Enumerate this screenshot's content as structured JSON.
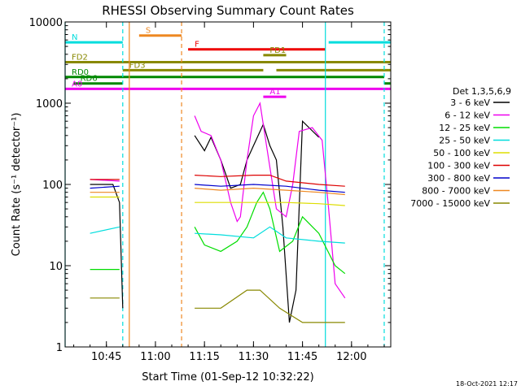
{
  "chart_data": {
    "type": "line",
    "title": "RHESSI Observing Summary Count Rates",
    "xlabel": "Start Time (01-Sep-12 10:32:22)",
    "ylabel": "Count Rate (s⁻¹ detector⁻¹)",
    "y_scale": "log",
    "ylim": [
      1,
      10000
    ],
    "xlim": [
      "10:32:22",
      "12:12:00"
    ],
    "x_ticks": [
      "10:45",
      "11:00",
      "11:15",
      "11:30",
      "11:45",
      "12:00"
    ],
    "y_ticks": [
      "1",
      "10",
      "100",
      "1000",
      "10000"
    ],
    "timestamp": "18-Oct-2021 12:17",
    "legend": {
      "title": "Det 1,3,5,6,9",
      "position": "right",
      "entries": [
        {
          "label": "3 - 6 keV",
          "color": "#000000"
        },
        {
          "label": "6 - 12 keV",
          "color": "#ee00ee"
        },
        {
          "label": "12 - 25 keV",
          "color": "#00dd00"
        },
        {
          "label": "25 - 50 keV",
          "color": "#00dddd"
        },
        {
          "label": "50 - 100 keV",
          "color": "#dddd00"
        },
        {
          "label": "100 - 300 keV",
          "color": "#dd0000"
        },
        {
          "label": "300 - 800 keV",
          "color": "#0000cc"
        },
        {
          "label": "800 - 7000 keV",
          "color": "#ee8822"
        },
        {
          "label": "7000 - 15000 keV",
          "color": "#888800"
        }
      ]
    },
    "flags": [
      {
        "label": "S",
        "color": "#ee8822",
        "level": 6800,
        "segments": [
          [
            "10:55:00",
            "11:08:00"
          ]
        ]
      },
      {
        "label": "N",
        "color": "#00dddd",
        "level": 5600,
        "segments": [
          [
            "10:32:22",
            "10:50:00"
          ],
          [
            "11:53:00",
            "12:12:00"
          ]
        ]
      },
      {
        "label": "F",
        "color": "#ee0000",
        "level": 4600,
        "segments": [
          [
            "11:10:00",
            "11:52:00"
          ]
        ]
      },
      {
        "label": "FD1",
        "color": "#888800",
        "level": 3900,
        "segments": [
          [
            "11:33:00",
            "11:40:00"
          ]
        ]
      },
      {
        "label": "FD2",
        "color": "#888800",
        "level": 3200,
        "segments": [
          [
            "10:32:22",
            "12:12:00"
          ]
        ]
      },
      {
        "label": "FD3",
        "color": "#888800",
        "level": 2550,
        "segments": [
          [
            "10:50:00",
            "11:33:00"
          ],
          [
            "11:37:00",
            "12:12:00"
          ]
        ]
      },
      {
        "label": "RD0",
        "color": "#008800",
        "level": 2100,
        "segments": [
          [
            "10:32:22",
            "12:10:00"
          ]
        ]
      },
      {
        "label": "RD6",
        "color": "#008800",
        "level": 1750,
        "segments": [
          [
            "10:35:00",
            "10:50:00"
          ],
          [
            "12:10:00",
            "12:12:00"
          ]
        ]
      },
      {
        "label": "A0",
        "color": "#ee00ee",
        "level": 1500,
        "segments": [
          [
            "10:32:22",
            "12:12:00"
          ]
        ]
      },
      {
        "label": "A1",
        "color": "#ee00ee",
        "level": 1200,
        "segments": [
          [
            "11:33:00",
            "11:40:00"
          ]
        ]
      }
    ],
    "markers": [
      {
        "time": "10:50:00",
        "color": "#00dddd",
        "style": "dashed"
      },
      {
        "time": "10:52:00",
        "color": "#ee8822",
        "style": "solid"
      },
      {
        "time": "11:08:00",
        "color": "#ee8822",
        "style": "dashed"
      },
      {
        "time": "11:52:00",
        "color": "#00dddd",
        "style": "solid"
      },
      {
        "time": "12:10:00",
        "color": "#00dddd",
        "style": "dashed"
      },
      {
        "time": "10:32:22",
        "color": "#00dddd",
        "style": "solid"
      }
    ],
    "series": [
      {
        "name": "3 - 6 keV",
        "color": "#000000",
        "segments": [
          [
            [
              "10:40",
              "100"
            ],
            [
              "10:45",
              "100"
            ],
            [
              "10:47",
              "100"
            ],
            [
              "10:49",
              "60"
            ],
            [
              "10:50",
              "3"
            ]
          ],
          [
            [
              "11:12",
              "400"
            ],
            [
              "11:15",
              "260"
            ],
            [
              "11:17",
              "380"
            ],
            [
              "11:20",
              "200"
            ],
            [
              "11:23",
              "90"
            ],
            [
              "11:26",
              "100"
            ],
            [
              "11:28",
              "200"
            ],
            [
              "11:30",
              "300"
            ],
            [
              "11:33",
              "550"
            ],
            [
              "11:35",
              "300"
            ],
            [
              "11:37",
              "200"
            ],
            [
              "11:39",
              "30"
            ],
            [
              "11:41",
              "2"
            ],
            [
              "11:43",
              "5"
            ],
            [
              "11:45",
              "600"
            ],
            [
              "11:50",
              "380"
            ]
          ]
        ]
      },
      {
        "name": "6 - 12 keV",
        "color": "#ee00ee",
        "segments": [
          [
            [
              "10:40",
              "115"
            ],
            [
              "10:49",
              "110"
            ]
          ],
          [
            [
              "11:12",
              "700"
            ],
            [
              "11:14",
              "450"
            ],
            [
              "11:17",
              "400"
            ],
            [
              "11:20",
              "200"
            ],
            [
              "11:23",
              "60"
            ],
            [
              "11:25",
              "35"
            ],
            [
              "11:26",
              "40"
            ],
            [
              "11:28",
              "200"
            ],
            [
              "11:30",
              "700"
            ],
            [
              "11:32",
              "1000"
            ],
            [
              "11:34",
              "300"
            ],
            [
              "11:37",
              "50"
            ],
            [
              "11:40",
              "40"
            ],
            [
              "11:42",
              "100"
            ],
            [
              "11:44",
              "450"
            ],
            [
              "11:48",
              "500"
            ],
            [
              "11:51",
              "350"
            ],
            [
              "11:53",
              "50"
            ],
            [
              "11:55",
              "6"
            ],
            [
              "11:58",
              "4"
            ]
          ]
        ]
      },
      {
        "name": "12 - 25 keV",
        "color": "#00dd00",
        "segments": [
          [
            [
              "10:40",
              "9"
            ],
            [
              "10:49",
              "9"
            ]
          ],
          [
            [
              "11:12",
              "30"
            ],
            [
              "11:15",
              "18"
            ],
            [
              "11:20",
              "15"
            ],
            [
              "11:25",
              "20"
            ],
            [
              "11:28",
              "30"
            ],
            [
              "11:31",
              "60"
            ],
            [
              "11:33",
              "80"
            ],
            [
              "11:35",
              "50"
            ],
            [
              "11:38",
              "15"
            ],
            [
              "11:42",
              "20"
            ],
            [
              "11:45",
              "40"
            ],
            [
              "11:50",
              "25"
            ],
            [
              "11:55",
              "10"
            ],
            [
              "11:58",
              "8"
            ]
          ]
        ]
      },
      {
        "name": "25 - 50 keV",
        "color": "#00dddd",
        "segments": [
          [
            [
              "10:40",
              "25"
            ],
            [
              "10:49",
              "30"
            ]
          ],
          [
            [
              "11:12",
              "25"
            ],
            [
              "11:20",
              "24"
            ],
            [
              "11:30",
              "22"
            ],
            [
              "11:35",
              "30"
            ],
            [
              "11:40",
              "22"
            ],
            [
              "11:50",
              "20"
            ],
            [
              "11:58",
              "19"
            ]
          ]
        ]
      },
      {
        "name": "50 - 100 keV",
        "color": "#dddd00",
        "segments": [
          [
            [
              "10:40",
              "70"
            ],
            [
              "10:49",
              "70"
            ]
          ],
          [
            [
              "11:12",
              "60"
            ],
            [
              "11:20",
              "60"
            ],
            [
              "11:30",
              "60"
            ],
            [
              "11:40",
              "60"
            ],
            [
              "11:50",
              "58"
            ],
            [
              "11:58",
              "55"
            ]
          ]
        ]
      },
      {
        "name": "100 - 300 keV",
        "color": "#dd0000",
        "segments": [
          [
            [
              "10:40",
              "115"
            ],
            [
              "10:49",
              "115"
            ]
          ],
          [
            [
              "11:12",
              "130"
            ],
            [
              "11:20",
              "125"
            ],
            [
              "11:30",
              "130"
            ],
            [
              "11:35",
              "130"
            ],
            [
              "11:40",
              "110"
            ],
            [
              "11:50",
              "100"
            ],
            [
              "11:58",
              "95"
            ]
          ]
        ]
      },
      {
        "name": "300 - 800 keV",
        "color": "#0000cc",
        "segments": [
          [
            [
              "10:40",
              "90"
            ],
            [
              "10:49",
              "95"
            ]
          ],
          [
            [
              "11:12",
              "100"
            ],
            [
              "11:20",
              "95"
            ],
            [
              "11:30",
              "100"
            ],
            [
              "11:40",
              "95"
            ],
            [
              "11:50",
              "85"
            ],
            [
              "11:58",
              "80"
            ]
          ]
        ]
      },
      {
        "name": "800 - 7000 keV",
        "color": "#ee8822",
        "segments": [
          [
            [
              "10:40",
              "80"
            ],
            [
              "10:49",
              "80"
            ]
          ],
          [
            [
              "11:12",
              "90"
            ],
            [
              "11:20",
              "85"
            ],
            [
              "11:30",
              "90"
            ],
            [
              "11:40",
              "85"
            ],
            [
              "11:50",
              "80"
            ],
            [
              "11:58",
              "75"
            ]
          ]
        ]
      },
      {
        "name": "7000 - 15000 keV",
        "color": "#888800",
        "segments": [
          [
            [
              "10:40",
              "4"
            ],
            [
              "10:49",
              "4"
            ]
          ],
          [
            [
              "11:12",
              "3"
            ],
            [
              "11:20",
              "3"
            ],
            [
              "11:28",
              "5"
            ],
            [
              "11:32",
              "5"
            ],
            [
              "11:38",
              "3"
            ],
            [
              "11:45",
              "2"
            ],
            [
              "11:50",
              "2"
            ],
            [
              "11:58",
              "2"
            ]
          ]
        ]
      }
    ]
  }
}
